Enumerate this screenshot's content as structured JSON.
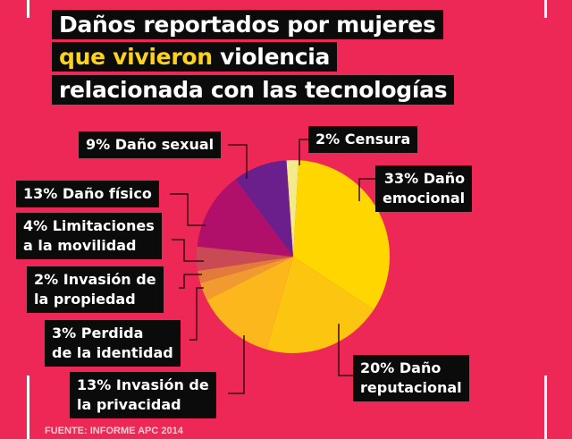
{
  "title": {
    "line1": "Daños reportados por mujeres",
    "line2_highlight": "que vivieron",
    "line2_rest": " violencia",
    "line3": "relacionada con las tecnologías"
  },
  "source": "FUENTE: INFORME APC 2014",
  "chart_data": {
    "type": "pie",
    "slices": [
      {
        "label": "2% Censura",
        "value": 2,
        "color": "#f3ea8a"
      },
      {
        "label": "33% Daño emocional",
        "value": 33,
        "color": "#ffd600"
      },
      {
        "label": "20% Daño reputacional",
        "value": 20,
        "color": "#fcc510"
      },
      {
        "label": "13% Invasión de la privacidad",
        "value": 13,
        "color": "#fbb71c"
      },
      {
        "label": "3% Perdida de la identidad",
        "value": 3,
        "color": "#f19a30"
      },
      {
        "label": "2% Invasión de la propiedad",
        "value": 2,
        "color": "#e27a3c"
      },
      {
        "label": "4% Limitaciones a la movilidad",
        "value": 4,
        "color": "#c94a55"
      },
      {
        "label": "13% Daño físico",
        "value": 13,
        "color": "#b0106a"
      },
      {
        "label": "9% Daño sexual",
        "value": 9,
        "color": "#6b1f8c"
      }
    ],
    "labels": {
      "censura": "2% Censura",
      "emocional1": "33% Daño",
      "emocional2": "emocional",
      "reputacional1": "20% Daño",
      "reputacional2": "reputacional",
      "privacidad1": "13% Invasión de",
      "privacidad2": "la privacidad",
      "identidad1": "3% Perdida",
      "identidad2": "de la identidad",
      "propiedad1": "2% Invasión de",
      "propiedad2": "la propiedad",
      "movilidad1": "4% Limitaciones",
      "movilidad2": "a la movilidad",
      "fisico": "13% Daño físico",
      "sexual": "9% Daño sexual"
    }
  }
}
